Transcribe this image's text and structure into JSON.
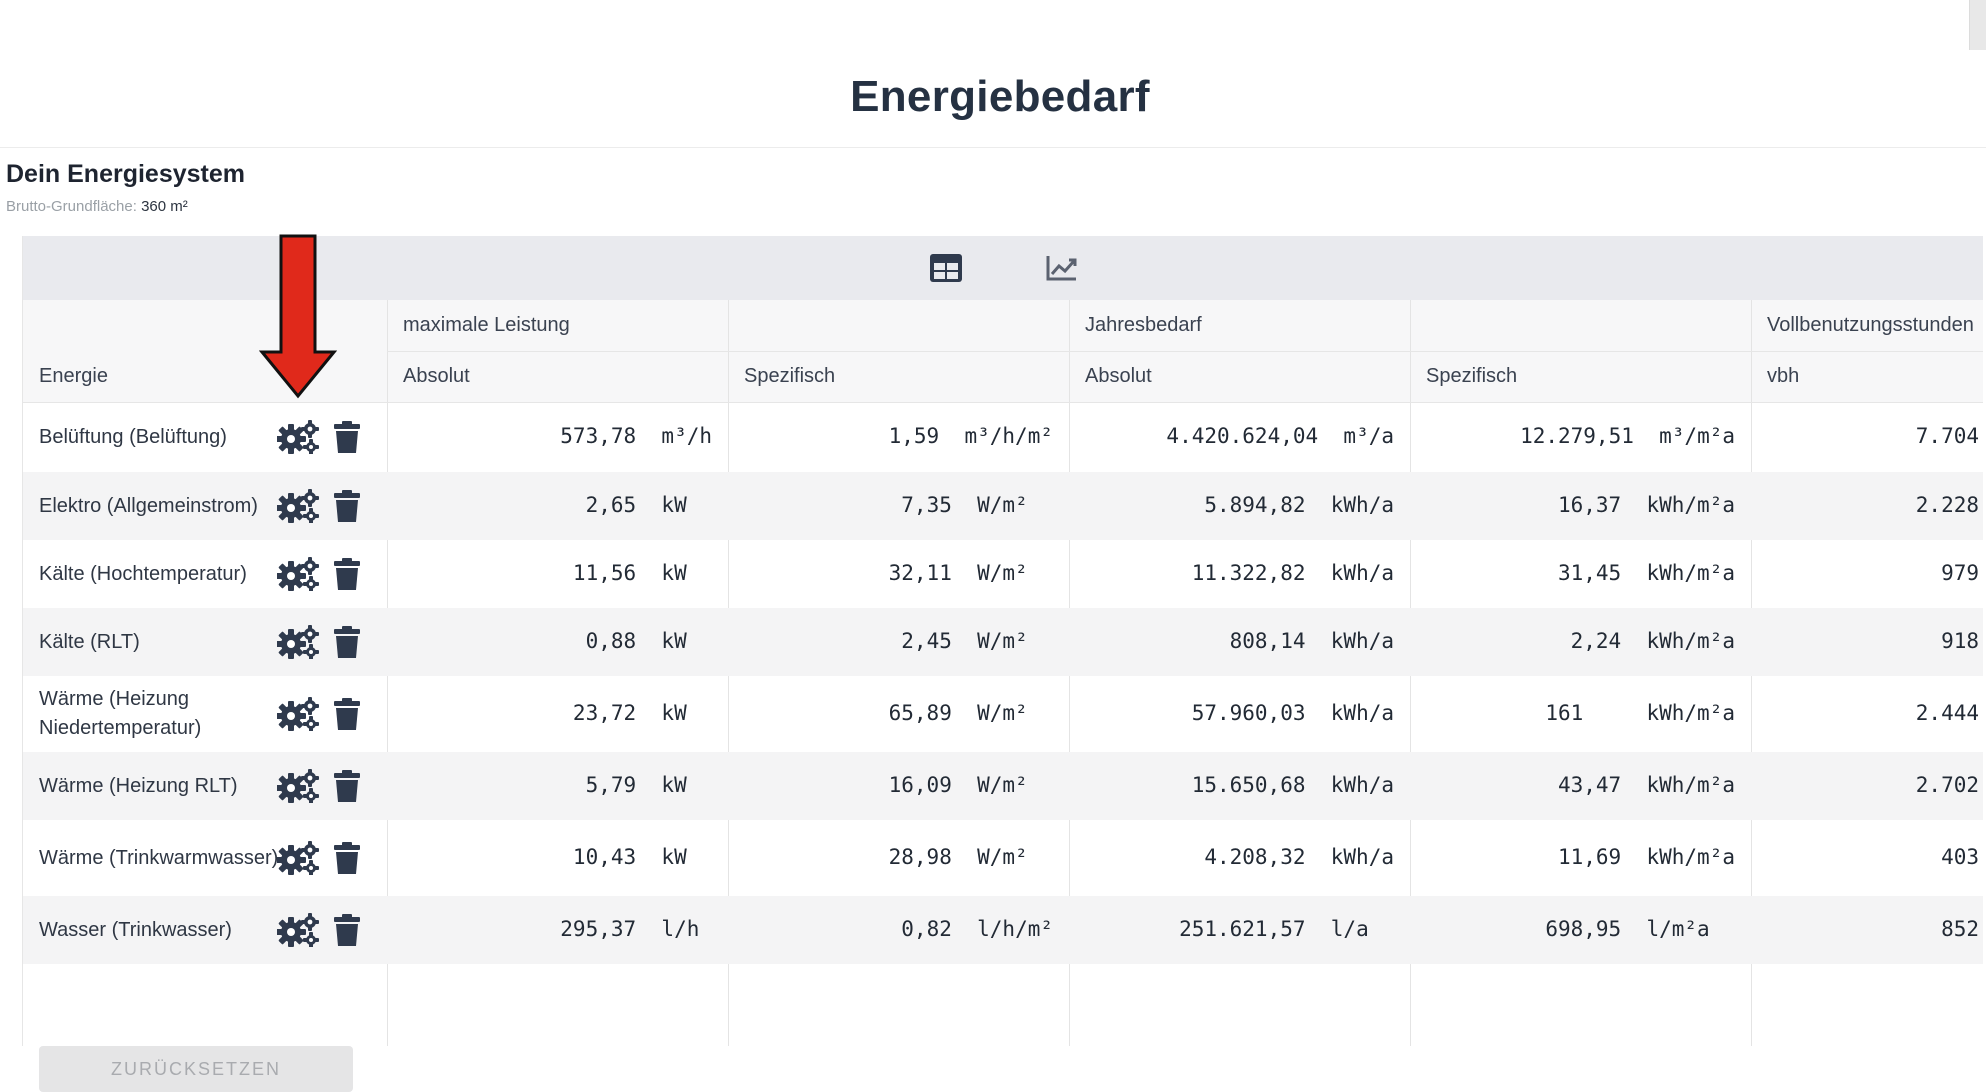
{
  "page": {
    "title": "Energiebedarf"
  },
  "system": {
    "title": "Dein Energiesystem",
    "area_label": "Brutto-Grundfläche:",
    "area_value": "360 m²"
  },
  "view_toggle": {
    "table_icon": "table-icon",
    "chart_icon": "chart-line-icon"
  },
  "table": {
    "groups": [
      "maximale Leistung",
      "Jahresbedarf",
      "Vollbenutzungsstunden"
    ],
    "first_column": "Energie",
    "subcolumns": [
      "Absolut",
      "Spezifisch",
      "Absolut",
      "Spezifisch",
      "vbh"
    ],
    "rows": [
      {
        "label": "Belüftung (Belüftung)",
        "max_abs": "573,78  m³/h",
        "max_spec": "1,59  m³/h/m²",
        "year_abs": "4.420.624,04  m³/a",
        "year_spec": "12.279,51  m³/m²a",
        "vbh": "7.704"
      },
      {
        "label": "Elektro (Allgemeinstrom)",
        "max_abs": "2,65  kW  ",
        "max_spec": "7,35  W/m²  ",
        "year_abs": "5.894,82  kWh/a",
        "year_spec": "16,37  kWh/m²a",
        "vbh": "2.228"
      },
      {
        "label": "Kälte (Hochtemperatur)",
        "max_abs": "11,56  kW  ",
        "max_spec": "32,11  W/m²  ",
        "year_abs": "11.322,82  kWh/a",
        "year_spec": "31,45  kWh/m²a",
        "vbh": "979"
      },
      {
        "label": "Kälte (RLT)",
        "max_abs": "0,88  kW  ",
        "max_spec": "2,45  W/m²  ",
        "year_abs": "808,14  kWh/a",
        "year_spec": "2,24  kWh/m²a",
        "vbh": "918"
      },
      {
        "label": "Wärme (Heizung Niedertemperatur)",
        "max_abs": "23,72  kW  ",
        "max_spec": "65,89  W/m²  ",
        "year_abs": "57.960,03  kWh/a",
        "year_spec": "161     kWh/m²a",
        "vbh": "2.444"
      },
      {
        "label": "Wärme (Heizung RLT)",
        "max_abs": "5,79  kW  ",
        "max_spec": "16,09  W/m²  ",
        "year_abs": "15.650,68  kWh/a",
        "year_spec": "43,47  kWh/m²a",
        "vbh": "2.702"
      },
      {
        "label": "Wärme (Trinkwarmwasser)",
        "max_abs": "10,43  kW  ",
        "max_spec": "28,98  W/m²  ",
        "year_abs": "4.208,32  kWh/a",
        "year_spec": "11,69  kWh/m²a",
        "vbh": "403"
      },
      {
        "label": "Wasser (Trinkwasser)",
        "max_abs": "295,37  l/h ",
        "max_spec": "0,82  l/h/m²",
        "year_abs": "251.621,57  l/a  ",
        "year_spec": "698,95  l/m²a  ",
        "vbh": "852"
      }
    ],
    "row_icons": [
      "gears-icon",
      "trash-icon"
    ],
    "reset_label": "ZURÜCKSETZEN"
  },
  "annotation": {
    "icon": "red-arrow-down-icon",
    "color": "#e0291b"
  }
}
